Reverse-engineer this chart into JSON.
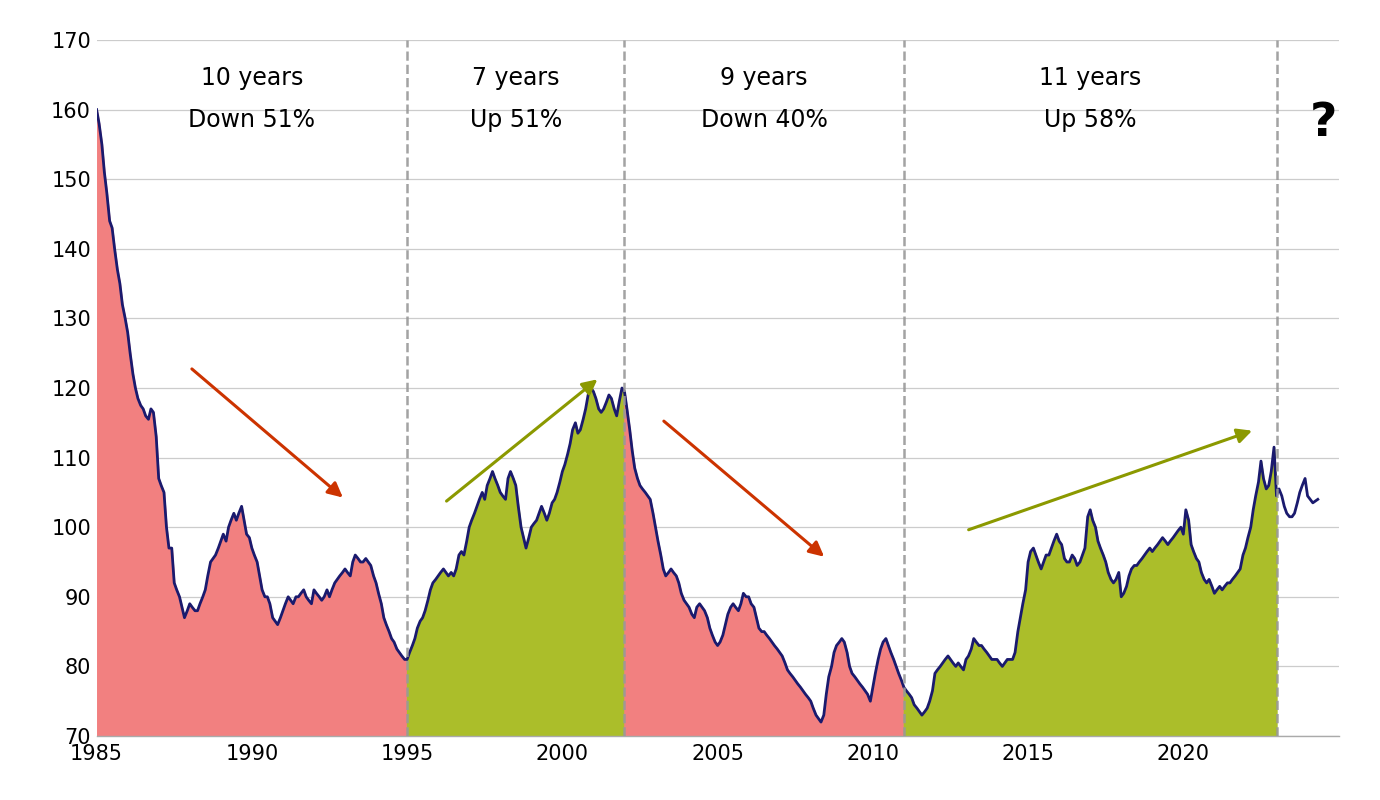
{
  "ylim": [
    70,
    170
  ],
  "yticks": [
    70,
    80,
    90,
    100,
    110,
    120,
    130,
    140,
    150,
    160,
    170
  ],
  "xlim": [
    1985.0,
    2025.0
  ],
  "xticks": [
    1985,
    1990,
    1995,
    2000,
    2005,
    2010,
    2015,
    2020
  ],
  "vlines": [
    1995.0,
    2002.0,
    2011.0,
    2023.0
  ],
  "periods": [
    {
      "label": "10 years",
      "sublabel": "Down 51%",
      "x_center": 1990.0
    },
    {
      "label": "7 years",
      "sublabel": "Up 51%",
      "x_center": 1998.5
    },
    {
      "label": "9 years",
      "sublabel": "Down 40%",
      "x_center": 2006.5
    },
    {
      "label": "11 years",
      "sublabel": "Up 58%",
      "x_center": 2017.0
    }
  ],
  "fill_color_down": "#F28080",
  "fill_color_up": "#ABBE2A",
  "line_color": "#1a1a6e",
  "background_color": "#ffffff",
  "arrow_down_color": "#CC3300",
  "arrow_up_color": "#8B9900",
  "question_mark_x": 2024.5,
  "question_mark_y": 158.0,
  "seg_boundaries": [
    1985.0,
    1995.0,
    2002.0,
    2011.0,
    2023.0
  ],
  "seg_colors_type": [
    "down",
    "up",
    "down",
    "up"
  ],
  "dxy_data": [
    [
      1985.0,
      160.0
    ],
    [
      1985.08,
      158.0
    ],
    [
      1985.17,
      155.0
    ],
    [
      1985.25,
      151.0
    ],
    [
      1985.33,
      148.0
    ],
    [
      1985.42,
      144.0
    ],
    [
      1985.5,
      143.0
    ],
    [
      1985.58,
      140.0
    ],
    [
      1985.67,
      137.0
    ],
    [
      1985.75,
      135.0
    ],
    [
      1985.83,
      132.0
    ],
    [
      1985.92,
      130.0
    ],
    [
      1986.0,
      128.0
    ],
    [
      1986.08,
      125.0
    ],
    [
      1986.17,
      122.0
    ],
    [
      1986.25,
      120.0
    ],
    [
      1986.33,
      118.5
    ],
    [
      1986.42,
      117.5
    ],
    [
      1986.5,
      117.0
    ],
    [
      1986.58,
      116.0
    ],
    [
      1986.67,
      115.5
    ],
    [
      1986.75,
      117.0
    ],
    [
      1986.83,
      116.5
    ],
    [
      1986.92,
      113.0
    ],
    [
      1987.0,
      107.0
    ],
    [
      1987.08,
      106.0
    ],
    [
      1987.17,
      105.0
    ],
    [
      1987.25,
      100.0
    ],
    [
      1987.33,
      97.0
    ],
    [
      1987.42,
      97.0
    ],
    [
      1987.5,
      92.0
    ],
    [
      1987.58,
      91.0
    ],
    [
      1987.67,
      90.0
    ],
    [
      1987.75,
      88.5
    ],
    [
      1987.83,
      87.0
    ],
    [
      1987.92,
      88.0
    ],
    [
      1988.0,
      89.0
    ],
    [
      1988.08,
      88.5
    ],
    [
      1988.17,
      88.0
    ],
    [
      1988.25,
      88.0
    ],
    [
      1988.33,
      89.0
    ],
    [
      1988.42,
      90.0
    ],
    [
      1988.5,
      91.0
    ],
    [
      1988.58,
      93.0
    ],
    [
      1988.67,
      95.0
    ],
    [
      1988.75,
      95.5
    ],
    [
      1988.83,
      96.0
    ],
    [
      1988.92,
      97.0
    ],
    [
      1989.0,
      98.0
    ],
    [
      1989.08,
      99.0
    ],
    [
      1989.17,
      98.0
    ],
    [
      1989.25,
      100.0
    ],
    [
      1989.33,
      101.0
    ],
    [
      1989.42,
      102.0
    ],
    [
      1989.5,
      101.0
    ],
    [
      1989.58,
      102.0
    ],
    [
      1989.67,
      103.0
    ],
    [
      1989.75,
      101.0
    ],
    [
      1989.83,
      99.0
    ],
    [
      1989.92,
      98.5
    ],
    [
      1990.0,
      97.0
    ],
    [
      1990.08,
      96.0
    ],
    [
      1990.17,
      95.0
    ],
    [
      1990.25,
      93.0
    ],
    [
      1990.33,
      91.0
    ],
    [
      1990.42,
      90.0
    ],
    [
      1990.5,
      90.0
    ],
    [
      1990.58,
      89.0
    ],
    [
      1990.67,
      87.0
    ],
    [
      1990.75,
      86.5
    ],
    [
      1990.83,
      86.0
    ],
    [
      1990.92,
      87.0
    ],
    [
      1991.0,
      88.0
    ],
    [
      1991.08,
      89.0
    ],
    [
      1991.17,
      90.0
    ],
    [
      1991.25,
      89.5
    ],
    [
      1991.33,
      89.0
    ],
    [
      1991.42,
      90.0
    ],
    [
      1991.5,
      90.0
    ],
    [
      1991.58,
      90.5
    ],
    [
      1991.67,
      91.0
    ],
    [
      1991.75,
      90.0
    ],
    [
      1991.83,
      89.5
    ],
    [
      1991.92,
      89.0
    ],
    [
      1992.0,
      91.0
    ],
    [
      1992.08,
      90.5
    ],
    [
      1992.17,
      90.0
    ],
    [
      1992.25,
      89.5
    ],
    [
      1992.33,
      90.0
    ],
    [
      1992.42,
      91.0
    ],
    [
      1992.5,
      90.0
    ],
    [
      1992.58,
      91.0
    ],
    [
      1992.67,
      92.0
    ],
    [
      1992.75,
      92.5
    ],
    [
      1992.83,
      93.0
    ],
    [
      1992.92,
      93.5
    ],
    [
      1993.0,
      94.0
    ],
    [
      1993.08,
      93.5
    ],
    [
      1993.17,
      93.0
    ],
    [
      1993.25,
      95.0
    ],
    [
      1993.33,
      96.0
    ],
    [
      1993.42,
      95.5
    ],
    [
      1993.5,
      95.0
    ],
    [
      1993.58,
      95.0
    ],
    [
      1993.67,
      95.5
    ],
    [
      1993.75,
      95.0
    ],
    [
      1993.83,
      94.5
    ],
    [
      1993.92,
      93.0
    ],
    [
      1994.0,
      92.0
    ],
    [
      1994.08,
      90.5
    ],
    [
      1994.17,
      89.0
    ],
    [
      1994.25,
      87.0
    ],
    [
      1994.33,
      86.0
    ],
    [
      1994.42,
      85.0
    ],
    [
      1994.5,
      84.0
    ],
    [
      1994.58,
      83.5
    ],
    [
      1994.67,
      82.5
    ],
    [
      1994.75,
      82.0
    ],
    [
      1994.83,
      81.5
    ],
    [
      1994.92,
      81.0
    ],
    [
      1995.0,
      81.0
    ],
    [
      1995.08,
      82.0
    ],
    [
      1995.17,
      83.0
    ],
    [
      1995.25,
      84.0
    ],
    [
      1995.33,
      85.5
    ],
    [
      1995.42,
      86.5
    ],
    [
      1995.5,
      87.0
    ],
    [
      1995.58,
      88.0
    ],
    [
      1995.67,
      89.5
    ],
    [
      1995.75,
      91.0
    ],
    [
      1995.83,
      92.0
    ],
    [
      1995.92,
      92.5
    ],
    [
      1996.0,
      93.0
    ],
    [
      1996.08,
      93.5
    ],
    [
      1996.17,
      94.0
    ],
    [
      1996.25,
      93.5
    ],
    [
      1996.33,
      93.0
    ],
    [
      1996.42,
      93.5
    ],
    [
      1996.5,
      93.0
    ],
    [
      1996.58,
      94.0
    ],
    [
      1996.67,
      96.0
    ],
    [
      1996.75,
      96.5
    ],
    [
      1996.83,
      96.0
    ],
    [
      1996.92,
      98.0
    ],
    [
      1997.0,
      100.0
    ],
    [
      1997.08,
      101.0
    ],
    [
      1997.17,
      102.0
    ],
    [
      1997.25,
      103.0
    ],
    [
      1997.33,
      104.0
    ],
    [
      1997.42,
      105.0
    ],
    [
      1997.5,
      104.0
    ],
    [
      1997.58,
      106.0
    ],
    [
      1997.67,
      107.0
    ],
    [
      1997.75,
      108.0
    ],
    [
      1997.83,
      107.0
    ],
    [
      1997.92,
      106.0
    ],
    [
      1998.0,
      105.0
    ],
    [
      1998.08,
      104.5
    ],
    [
      1998.17,
      104.0
    ],
    [
      1998.25,
      107.0
    ],
    [
      1998.33,
      108.0
    ],
    [
      1998.42,
      107.0
    ],
    [
      1998.5,
      106.0
    ],
    [
      1998.58,
      103.0
    ],
    [
      1998.67,
      100.0
    ],
    [
      1998.75,
      98.5
    ],
    [
      1998.83,
      97.0
    ],
    [
      1998.92,
      98.5
    ],
    [
      1999.0,
      100.0
    ],
    [
      1999.08,
      100.5
    ],
    [
      1999.17,
      101.0
    ],
    [
      1999.25,
      102.0
    ],
    [
      1999.33,
      103.0
    ],
    [
      1999.42,
      102.0
    ],
    [
      1999.5,
      101.0
    ],
    [
      1999.58,
      102.0
    ],
    [
      1999.67,
      103.5
    ],
    [
      1999.75,
      104.0
    ],
    [
      1999.83,
      105.0
    ],
    [
      1999.92,
      106.5
    ],
    [
      2000.0,
      108.0
    ],
    [
      2000.08,
      109.0
    ],
    [
      2000.17,
      110.5
    ],
    [
      2000.25,
      112.0
    ],
    [
      2000.33,
      114.0
    ],
    [
      2000.42,
      115.0
    ],
    [
      2000.5,
      113.5
    ],
    [
      2000.58,
      114.0
    ],
    [
      2000.67,
      115.5
    ],
    [
      2000.75,
      117.0
    ],
    [
      2000.83,
      119.0
    ],
    [
      2000.92,
      120.0
    ],
    [
      2001.0,
      119.5
    ],
    [
      2001.08,
      118.5
    ],
    [
      2001.17,
      117.0
    ],
    [
      2001.25,
      116.5
    ],
    [
      2001.33,
      117.0
    ],
    [
      2001.42,
      118.0
    ],
    [
      2001.5,
      119.0
    ],
    [
      2001.58,
      118.5
    ],
    [
      2001.67,
      117.0
    ],
    [
      2001.75,
      116.0
    ],
    [
      2001.83,
      118.0
    ],
    [
      2001.92,
      120.0
    ],
    [
      2002.0,
      119.5
    ],
    [
      2002.08,
      117.0
    ],
    [
      2002.17,
      114.0
    ],
    [
      2002.25,
      111.0
    ],
    [
      2002.33,
      108.5
    ],
    [
      2002.42,
      107.0
    ],
    [
      2002.5,
      106.0
    ],
    [
      2002.58,
      105.5
    ],
    [
      2002.67,
      105.0
    ],
    [
      2002.75,
      104.5
    ],
    [
      2002.83,
      104.0
    ],
    [
      2002.92,
      102.0
    ],
    [
      2003.0,
      100.0
    ],
    [
      2003.08,
      98.0
    ],
    [
      2003.17,
      96.0
    ],
    [
      2003.25,
      94.0
    ],
    [
      2003.33,
      93.0
    ],
    [
      2003.42,
      93.5
    ],
    [
      2003.5,
      94.0
    ],
    [
      2003.58,
      93.5
    ],
    [
      2003.67,
      93.0
    ],
    [
      2003.75,
      92.0
    ],
    [
      2003.83,
      90.5
    ],
    [
      2003.92,
      89.5
    ],
    [
      2004.0,
      89.0
    ],
    [
      2004.08,
      88.5
    ],
    [
      2004.17,
      87.5
    ],
    [
      2004.25,
      87.0
    ],
    [
      2004.33,
      88.5
    ],
    [
      2004.42,
      89.0
    ],
    [
      2004.5,
      88.5
    ],
    [
      2004.58,
      88.0
    ],
    [
      2004.67,
      87.0
    ],
    [
      2004.75,
      85.5
    ],
    [
      2004.83,
      84.5
    ],
    [
      2004.92,
      83.5
    ],
    [
      2005.0,
      83.0
    ],
    [
      2005.08,
      83.5
    ],
    [
      2005.17,
      84.5
    ],
    [
      2005.25,
      86.0
    ],
    [
      2005.33,
      87.5
    ],
    [
      2005.42,
      88.5
    ],
    [
      2005.5,
      89.0
    ],
    [
      2005.58,
      88.5
    ],
    [
      2005.67,
      88.0
    ],
    [
      2005.75,
      89.0
    ],
    [
      2005.83,
      90.5
    ],
    [
      2005.92,
      90.0
    ],
    [
      2006.0,
      90.0
    ],
    [
      2006.08,
      89.0
    ],
    [
      2006.17,
      88.5
    ],
    [
      2006.25,
      87.0
    ],
    [
      2006.33,
      85.5
    ],
    [
      2006.42,
      85.0
    ],
    [
      2006.5,
      85.0
    ],
    [
      2006.58,
      84.5
    ],
    [
      2006.67,
      84.0
    ],
    [
      2006.75,
      83.5
    ],
    [
      2006.83,
      83.0
    ],
    [
      2006.92,
      82.5
    ],
    [
      2007.0,
      82.0
    ],
    [
      2007.08,
      81.5
    ],
    [
      2007.17,
      80.5
    ],
    [
      2007.25,
      79.5
    ],
    [
      2007.33,
      79.0
    ],
    [
      2007.42,
      78.5
    ],
    [
      2007.5,
      78.0
    ],
    [
      2007.58,
      77.5
    ],
    [
      2007.67,
      77.0
    ],
    [
      2007.75,
      76.5
    ],
    [
      2007.83,
      76.0
    ],
    [
      2007.92,
      75.5
    ],
    [
      2008.0,
      75.0
    ],
    [
      2008.08,
      74.0
    ],
    [
      2008.17,
      73.0
    ],
    [
      2008.25,
      72.5
    ],
    [
      2008.33,
      72.0
    ],
    [
      2008.42,
      73.0
    ],
    [
      2008.5,
      76.0
    ],
    [
      2008.58,
      78.5
    ],
    [
      2008.67,
      80.0
    ],
    [
      2008.75,
      82.0
    ],
    [
      2008.83,
      83.0
    ],
    [
      2008.92,
      83.5
    ],
    [
      2009.0,
      84.0
    ],
    [
      2009.08,
      83.5
    ],
    [
      2009.17,
      82.0
    ],
    [
      2009.25,
      80.0
    ],
    [
      2009.33,
      79.0
    ],
    [
      2009.42,
      78.5
    ],
    [
      2009.5,
      78.0
    ],
    [
      2009.58,
      77.5
    ],
    [
      2009.67,
      77.0
    ],
    [
      2009.75,
      76.5
    ],
    [
      2009.83,
      76.0
    ],
    [
      2009.92,
      75.0
    ],
    [
      2010.0,
      77.0
    ],
    [
      2010.08,
      79.0
    ],
    [
      2010.17,
      81.0
    ],
    [
      2010.25,
      82.5
    ],
    [
      2010.33,
      83.5
    ],
    [
      2010.42,
      84.0
    ],
    [
      2010.5,
      83.0
    ],
    [
      2010.58,
      82.0
    ],
    [
      2010.67,
      81.0
    ],
    [
      2010.75,
      80.0
    ],
    [
      2010.83,
      79.0
    ],
    [
      2010.92,
      78.0
    ],
    [
      2011.0,
      77.0
    ],
    [
      2011.08,
      76.5
    ],
    [
      2011.17,
      76.0
    ],
    [
      2011.25,
      75.5
    ],
    [
      2011.33,
      74.5
    ],
    [
      2011.42,
      74.0
    ],
    [
      2011.5,
      73.5
    ],
    [
      2011.58,
      73.0
    ],
    [
      2011.67,
      73.5
    ],
    [
      2011.75,
      74.0
    ],
    [
      2011.83,
      75.0
    ],
    [
      2011.92,
      76.5
    ],
    [
      2012.0,
      79.0
    ],
    [
      2012.08,
      79.5
    ],
    [
      2012.17,
      80.0
    ],
    [
      2012.25,
      80.5
    ],
    [
      2012.33,
      81.0
    ],
    [
      2012.42,
      81.5
    ],
    [
      2012.5,
      81.0
    ],
    [
      2012.58,
      80.5
    ],
    [
      2012.67,
      80.0
    ],
    [
      2012.75,
      80.5
    ],
    [
      2012.83,
      80.0
    ],
    [
      2012.92,
      79.5
    ],
    [
      2013.0,
      81.0
    ],
    [
      2013.08,
      81.5
    ],
    [
      2013.17,
      82.5
    ],
    [
      2013.25,
      84.0
    ],
    [
      2013.33,
      83.5
    ],
    [
      2013.42,
      83.0
    ],
    [
      2013.5,
      83.0
    ],
    [
      2013.58,
      82.5
    ],
    [
      2013.67,
      82.0
    ],
    [
      2013.75,
      81.5
    ],
    [
      2013.83,
      81.0
    ],
    [
      2013.92,
      81.0
    ],
    [
      2014.0,
      81.0
    ],
    [
      2014.08,
      80.5
    ],
    [
      2014.17,
      80.0
    ],
    [
      2014.25,
      80.5
    ],
    [
      2014.33,
      81.0
    ],
    [
      2014.42,
      81.0
    ],
    [
      2014.5,
      81.0
    ],
    [
      2014.58,
      82.0
    ],
    [
      2014.67,
      85.0
    ],
    [
      2014.75,
      87.0
    ],
    [
      2014.83,
      89.0
    ],
    [
      2014.92,
      91.0
    ],
    [
      2015.0,
      95.0
    ],
    [
      2015.08,
      96.5
    ],
    [
      2015.17,
      97.0
    ],
    [
      2015.25,
      96.0
    ],
    [
      2015.33,
      95.0
    ],
    [
      2015.42,
      94.0
    ],
    [
      2015.5,
      95.0
    ],
    [
      2015.58,
      96.0
    ],
    [
      2015.67,
      96.0
    ],
    [
      2015.75,
      97.0
    ],
    [
      2015.83,
      98.0
    ],
    [
      2015.92,
      99.0
    ],
    [
      2016.0,
      98.0
    ],
    [
      2016.08,
      97.5
    ],
    [
      2016.17,
      95.5
    ],
    [
      2016.25,
      95.0
    ],
    [
      2016.33,
      95.0
    ],
    [
      2016.42,
      96.0
    ],
    [
      2016.5,
      95.5
    ],
    [
      2016.58,
      94.5
    ],
    [
      2016.67,
      95.0
    ],
    [
      2016.75,
      96.0
    ],
    [
      2016.83,
      97.0
    ],
    [
      2016.92,
      101.5
    ],
    [
      2017.0,
      102.5
    ],
    [
      2017.08,
      101.0
    ],
    [
      2017.17,
      100.0
    ],
    [
      2017.25,
      98.0
    ],
    [
      2017.33,
      97.0
    ],
    [
      2017.42,
      96.0
    ],
    [
      2017.5,
      95.0
    ],
    [
      2017.58,
      93.5
    ],
    [
      2017.67,
      92.5
    ],
    [
      2017.75,
      92.0
    ],
    [
      2017.83,
      92.5
    ],
    [
      2017.92,
      93.5
    ],
    [
      2018.0,
      90.0
    ],
    [
      2018.08,
      90.5
    ],
    [
      2018.17,
      91.5
    ],
    [
      2018.25,
      93.0
    ],
    [
      2018.33,
      94.0
    ],
    [
      2018.42,
      94.5
    ],
    [
      2018.5,
      94.5
    ],
    [
      2018.58,
      95.0
    ],
    [
      2018.67,
      95.5
    ],
    [
      2018.75,
      96.0
    ],
    [
      2018.83,
      96.5
    ],
    [
      2018.92,
      97.0
    ],
    [
      2019.0,
      96.5
    ],
    [
      2019.08,
      97.0
    ],
    [
      2019.17,
      97.5
    ],
    [
      2019.25,
      98.0
    ],
    [
      2019.33,
      98.5
    ],
    [
      2019.42,
      98.0
    ],
    [
      2019.5,
      97.5
    ],
    [
      2019.58,
      98.0
    ],
    [
      2019.67,
      98.5
    ],
    [
      2019.75,
      99.0
    ],
    [
      2019.83,
      99.5
    ],
    [
      2019.92,
      100.0
    ],
    [
      2020.0,
      99.0
    ],
    [
      2020.08,
      102.5
    ],
    [
      2020.17,
      101.0
    ],
    [
      2020.25,
      97.5
    ],
    [
      2020.33,
      96.5
    ],
    [
      2020.42,
      95.5
    ],
    [
      2020.5,
      95.0
    ],
    [
      2020.58,
      93.5
    ],
    [
      2020.67,
      92.5
    ],
    [
      2020.75,
      92.0
    ],
    [
      2020.83,
      92.5
    ],
    [
      2020.92,
      91.5
    ],
    [
      2021.0,
      90.5
    ],
    [
      2021.08,
      91.0
    ],
    [
      2021.17,
      91.5
    ],
    [
      2021.25,
      91.0
    ],
    [
      2021.33,
      91.5
    ],
    [
      2021.42,
      92.0
    ],
    [
      2021.5,
      92.0
    ],
    [
      2021.58,
      92.5
    ],
    [
      2021.67,
      93.0
    ],
    [
      2021.75,
      93.5
    ],
    [
      2021.83,
      94.0
    ],
    [
      2021.92,
      96.0
    ],
    [
      2022.0,
      97.0
    ],
    [
      2022.08,
      98.5
    ],
    [
      2022.17,
      100.0
    ],
    [
      2022.25,
      102.5
    ],
    [
      2022.33,
      104.5
    ],
    [
      2022.42,
      106.5
    ],
    [
      2022.5,
      109.5
    ],
    [
      2022.58,
      107.0
    ],
    [
      2022.67,
      105.5
    ],
    [
      2022.75,
      106.0
    ],
    [
      2022.83,
      108.0
    ],
    [
      2022.92,
      111.5
    ],
    [
      2023.0,
      104.5
    ],
    [
      2023.08,
      105.5
    ],
    [
      2023.17,
      104.5
    ],
    [
      2023.25,
      103.0
    ],
    [
      2023.33,
      102.0
    ],
    [
      2023.42,
      101.5
    ],
    [
      2023.5,
      101.5
    ],
    [
      2023.58,
      102.0
    ],
    [
      2023.67,
      103.5
    ],
    [
      2023.75,
      105.0
    ],
    [
      2023.83,
      106.0
    ],
    [
      2023.92,
      107.0
    ],
    [
      2024.0,
      104.5
    ],
    [
      2024.17,
      103.5
    ],
    [
      2024.33,
      104.0
    ]
  ]
}
